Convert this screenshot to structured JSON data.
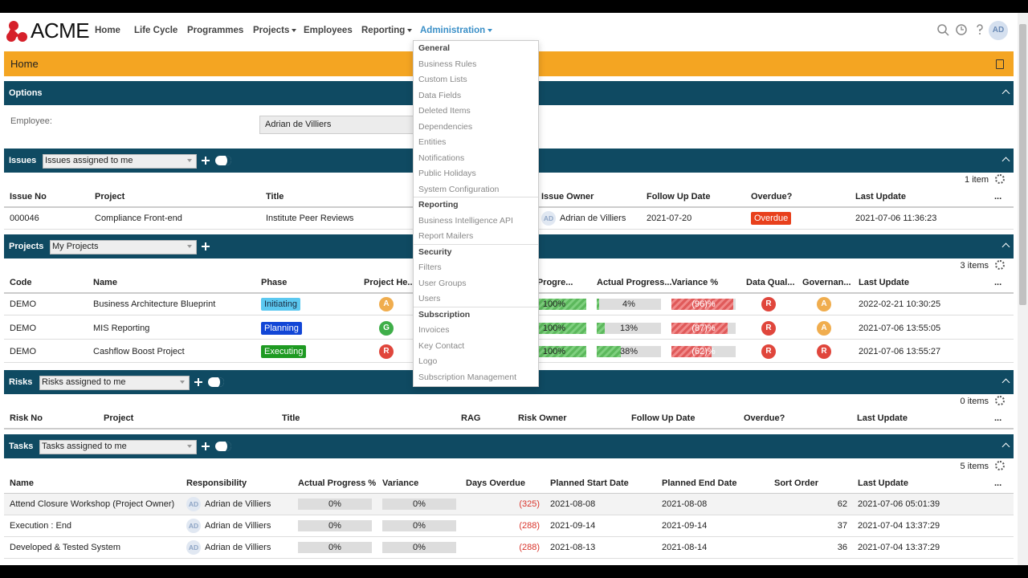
{
  "header": {
    "logo": "ACME",
    "nav": [
      "Home",
      "Life Cycle",
      "Programmes",
      "Projects",
      "Employees",
      "Reporting",
      "Administration"
    ],
    "user": "AD"
  },
  "page_title": "Home",
  "options": {
    "title": "Options",
    "employee_label": "Employee:",
    "employee": "Adrian de Villiers"
  },
  "issues": {
    "title": "Issues",
    "filter": "Issues assigned to me",
    "count": "1 item",
    "columns": [
      "Issue No",
      "Project",
      "Title",
      "Issue Owner",
      "Follow Up Date",
      "Overdue?",
      "Last Update",
      "..."
    ],
    "rows": [
      [
        "000046",
        "Compliance Front-end",
        "Institute Peer Reviews",
        {
          "initials": "AD",
          "name": "Adrian de Villiers"
        },
        "2021-07-20",
        {
          "label": "Overdue",
          "color": "#e8401c"
        },
        "2021-07-06 11:36:23"
      ]
    ]
  },
  "projects": {
    "title": "Projects",
    "filter": "My Projects",
    "count": "3 items",
    "columns": [
      "Code",
      "Name",
      "Phase",
      "Project He...",
      "Planned Progre...",
      "Actual Progress...",
      "Variance %",
      "Data Qual...",
      "Governan...",
      "Last Update",
      "..."
    ],
    "rows": [
      [
        "DEMO",
        "Business Architecture Blueprint",
        {
          "label": "Initiating",
          "color": "#5bc8f0",
          "text_color": "#1a2a40"
        },
        {
          "label": "A",
          "color": "#f0ad4e"
        },
        {
          "value": 100,
          "label": "100%"
        },
        {
          "value": 4,
          "label": "4%"
        },
        {
          "value": -96,
          "label": "(96)%"
        },
        {
          "label": "R",
          "color": "#e0463c"
        },
        {
          "label": "A",
          "color": "#f0ad4e"
        },
        "2022-02-21 10:30:25"
      ],
      [
        "DEMO",
        "MIS Reporting",
        {
          "label": "Planning",
          "color": "#1246d6",
          "text_color": "#ffffff"
        },
        {
          "label": "G",
          "color": "#3fae49"
        },
        {
          "value": 100,
          "label": "100%"
        },
        {
          "value": 13,
          "label": "13%"
        },
        {
          "value": -87,
          "label": "(87)%"
        },
        {
          "label": "R",
          "color": "#e0463c"
        },
        {
          "label": "A",
          "color": "#f0ad4e"
        },
        "2021-07-06 13:55:05"
      ],
      [
        "DEMO",
        "Cashflow Boost Project",
        {
          "label": "Executing",
          "color": "#1e9a22",
          "text_color": "#ffffff"
        },
        {
          "label": "R",
          "color": "#e0463c"
        },
        {
          "value": 100,
          "label": "100%"
        },
        {
          "value": 38,
          "label": "38%"
        },
        {
          "value": -62,
          "label": "(62)%"
        },
        {
          "label": "R",
          "color": "#e0463c"
        },
        {
          "label": "R",
          "color": "#e0463c"
        },
        "2021-07-06 13:55:27"
      ]
    ]
  },
  "risks": {
    "title": "Risks",
    "filter": "Risks assigned to me",
    "count": "0 items",
    "columns": [
      "Risk No",
      "Project",
      "Title",
      "RAG",
      "Risk Owner",
      "Follow Up Date",
      "Overdue?",
      "Last Update",
      "..."
    ],
    "rows": []
  },
  "tasks": {
    "title": "Tasks",
    "filter": "Tasks assigned to me",
    "count": "5 items",
    "columns": [
      "Name",
      "Responsibility",
      "Actual Progress %",
      "Variance",
      "Days Overdue",
      "Planned Start Date",
      "Planned End Date",
      "Sort Order",
      "Last Update",
      "..."
    ],
    "rows": [
      [
        "Attend Closure Workshop (Project Owner)",
        {
          "initials": "AD",
          "name": "Adrian de Villiers"
        },
        "0%",
        "0%",
        "(325)",
        "2021-08-08",
        "2021-08-08",
        "62",
        "2021-07-06 05:01:39"
      ],
      [
        "Execution : End",
        {
          "initials": "AD",
          "name": "Adrian de Villiers"
        },
        "0%",
        "0%",
        "(288)",
        "2021-09-14",
        "2021-09-14",
        "37",
        "2021-07-04 13:37:29"
      ],
      [
        "Developed & Tested System",
        {
          "initials": "AD",
          "name": "Adrian de Villiers"
        },
        "0%",
        "0%",
        "(288)",
        "2021-08-13",
        "2021-08-14",
        "36",
        "2021-07-04 13:37:29"
      ]
    ]
  },
  "admin_menu": [
    {
      "title": "General",
      "items": [
        "Business Rules",
        "Custom Lists",
        "Data Fields",
        "Deleted Items",
        "Dependencies",
        "Entities",
        "Notifications",
        "Public Holidays",
        "System Configuration"
      ]
    },
    {
      "title": "Reporting",
      "items": [
        "Business Intelligence API",
        "Report Mailers"
      ]
    },
    {
      "title": "Security",
      "items": [
        "Filters",
        "User Groups",
        "Users"
      ]
    },
    {
      "title": "Subscription",
      "items": [
        "Invoices",
        "Key Contact",
        "Logo",
        "Subscription Management"
      ]
    }
  ]
}
